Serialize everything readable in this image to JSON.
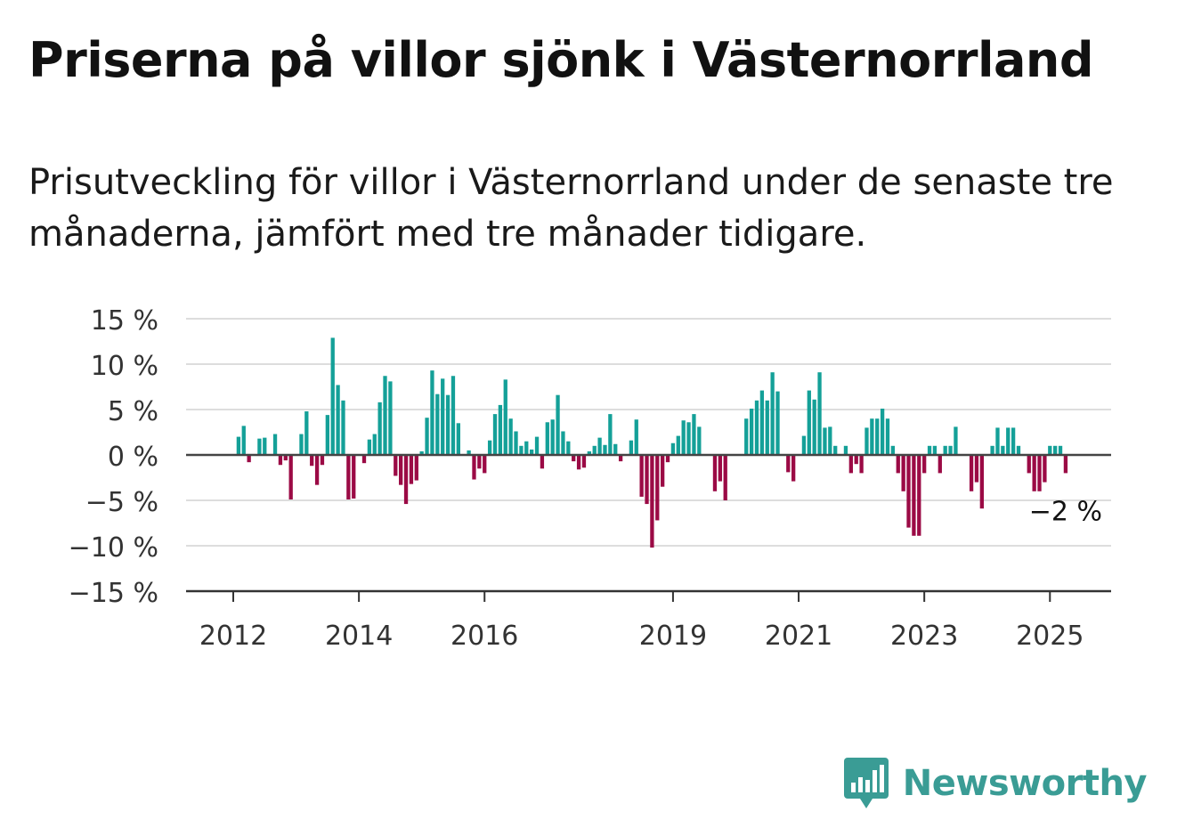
{
  "title": "Priserna på villor sjönk i Västernorrland",
  "subtitle": "Prisutveckling för villor i Västernorrland under de senaste tre månaderna, jämfört med tre månader tidigare.",
  "brand": {
    "name": "Newsworthy",
    "icon": "newsworthy-logo-icon",
    "color": "#3a9c95"
  },
  "chart_data": {
    "type": "bar",
    "x_start": "2012-01",
    "x_step": "month",
    "ylim": [
      -15,
      15
    ],
    "ytick_values": [
      15,
      10,
      5,
      0,
      -5,
      -10,
      -15
    ],
    "ytick_labels": [
      "15 %",
      "10 %",
      "5 %",
      "0 %",
      "−5 %",
      "−10 %",
      "−15 %"
    ],
    "xtick_labels": [
      "2012",
      "2014",
      "2016",
      "2019",
      "2021",
      "2023",
      "2025"
    ],
    "xtick_months": [
      "2012-01",
      "2014-01",
      "2016-01",
      "2019-01",
      "2021-01",
      "2023-01",
      "2025-01"
    ],
    "grid": true,
    "colors": {
      "positive": "#14a098",
      "negative": "#9b0a45",
      "grid": "#dddddd",
      "axis": "#444444"
    },
    "last_value_label": "−2 %",
    "values": [
      0,
      2,
      3.2,
      -0.8,
      0,
      1.8,
      1.9,
      0,
      2.3,
      -1.1,
      -0.6,
      -4.9,
      0,
      2.3,
      4.8,
      -1.2,
      -3.3,
      -1.1,
      4.4,
      12.9,
      7.7,
      6,
      -4.9,
      -4.8,
      0,
      -0.9,
      1.7,
      2.3,
      5.8,
      8.7,
      8.1,
      -2.3,
      -3.3,
      -5.4,
      -3.2,
      -2.8,
      0.4,
      4.1,
      9.3,
      6.7,
      8.4,
      6.6,
      8.7,
      3.5,
      0,
      0.5,
      -2.7,
      -1.5,
      -2,
      1.6,
      4.5,
      5.5,
      8.3,
      4,
      2.6,
      1,
      1.5,
      0.6,
      2,
      -1.5,
      3.6,
      3.9,
      6.6,
      2.6,
      1.5,
      -0.7,
      -1.6,
      -1.4,
      0.4,
      1,
      1.9,
      1.1,
      4.5,
      1.2,
      -0.7,
      0,
      1.6,
      3.9,
      -4.6,
      -5.4,
      -10.2,
      -7.2,
      -3.5,
      -0.8,
      1.3,
      2.1,
      3.8,
      3.6,
      4.5,
      3.1,
      0,
      0,
      -4,
      -2.9,
      -5,
      0,
      0,
      0,
      4,
      5.1,
      6,
      7.1,
      6,
      9.1,
      7,
      0,
      -1.9,
      -2.9,
      0,
      2.1,
      7.1,
      6.1,
      9.1,
      3,
      3.1,
      1,
      0,
      1,
      -2,
      -1,
      -2,
      3,
      4,
      4,
      5.1,
      4,
      1,
      -2,
      -4,
      -8,
      -8.9,
      -8.9,
      -2,
      1,
      1,
      -2,
      1,
      1,
      3.1,
      0,
      0,
      -4,
      -3,
      -5.9,
      0,
      1,
      3,
      1,
      3,
      3,
      1,
      0,
      -2,
      -4,
      -4,
      -3,
      1,
      1,
      1,
      -2
    ]
  }
}
